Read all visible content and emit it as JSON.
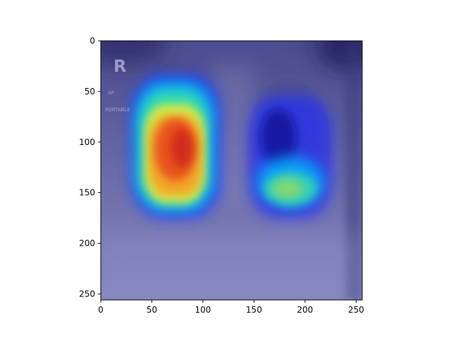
{
  "figure": {
    "overlay_labels": {
      "side_marker": "R",
      "view": "AP",
      "mode": "PORTABLE"
    },
    "colormap": "jet",
    "background_tint": "#7f80bf"
  },
  "chart_data": {
    "type": "heatmap",
    "title": "",
    "xlabel": "",
    "ylabel": "",
    "xlim": [
      0,
      256
    ],
    "ylim": [
      256,
      0
    ],
    "x_ticks": [
      "0",
      "50",
      "100",
      "150",
      "200",
      "250"
    ],
    "y_ticks": [
      "0",
      "50",
      "100",
      "150",
      "200",
      "250"
    ],
    "grid": false,
    "hotspots": [
      {
        "region": "left lung",
        "cx": 77,
        "cy": 115,
        "intensity": "high"
      },
      {
        "region": "right lung",
        "cx": 178,
        "cy": 142,
        "intensity": "moderate"
      }
    ]
  }
}
